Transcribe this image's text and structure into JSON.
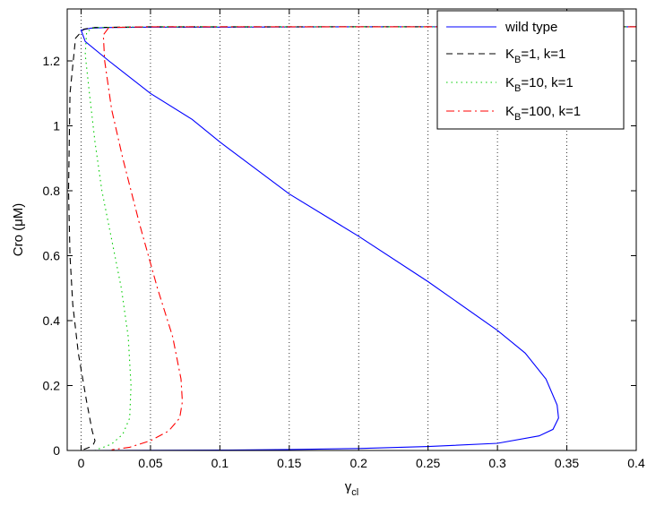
{
  "chart_data": {
    "type": "line",
    "xlabel_main": "γ",
    "xlabel_sub": "cl",
    "ylabel": "Cro (μM)",
    "xlim": [
      -0.01,
      0.4
    ],
    "ylim": [
      0,
      1.36
    ],
    "x_ticks": [
      0,
      0.05,
      0.1,
      0.15,
      0.2,
      0.25,
      0.3,
      0.35,
      0.4
    ],
    "x_tick_labels": [
      "0",
      "0.05",
      "0.1",
      "0.15",
      "0.2",
      "0.25",
      "0.3",
      "0.35",
      "0.4"
    ],
    "y_ticks": [
      0,
      0.2,
      0.4,
      0.6,
      0.8,
      1,
      1.2
    ],
    "y_tick_labels": [
      "0",
      "0.2",
      "0.4",
      "0.6",
      "0.8",
      "1",
      "1.2"
    ],
    "grid": "x-dotted",
    "legend_position": "top-right",
    "series": [
      {
        "name": "wild type",
        "legend_main": "wild type",
        "legend_sub": "",
        "legend_rest": "",
        "color": "#0000ff",
        "dash": "",
        "x": [
          0.4,
          0.3,
          0.2,
          0.1,
          0.05,
          0.02,
          0.007,
          0.0,
          0.003,
          0.02,
          0.05,
          0.08,
          0.1,
          0.15,
          0.2,
          0.25,
          0.3,
          0.32,
          0.335,
          0.343,
          0.344,
          0.34,
          0.33,
          0.3,
          0.25,
          0.2,
          0.15,
          0.1,
          0.05,
          0.0
        ],
        "y": [
          1.305,
          1.305,
          1.305,
          1.304,
          1.304,
          1.303,
          1.301,
          1.295,
          1.26,
          1.2,
          1.1,
          1.02,
          0.95,
          0.79,
          0.66,
          0.52,
          0.37,
          0.3,
          0.22,
          0.14,
          0.1,
          0.065,
          0.045,
          0.022,
          0.012,
          0.006,
          0.003,
          0.001,
          0.0005,
          0.0
        ]
      },
      {
        "name": "K_B=1, k=1",
        "legend_main": "K",
        "legend_sub": "B",
        "legend_rest": "=1, k=1",
        "color": "#000000",
        "dash": "7,5",
        "x": [
          0.4,
          0.2,
          0.05,
          0.01,
          0.002,
          -0.004,
          -0.008,
          -0.009,
          -0.008,
          -0.006,
          -0.002,
          0.004,
          0.008,
          0.01,
          0.009,
          0.006,
          0.0
        ],
        "y": [
          1.305,
          1.305,
          1.305,
          1.303,
          1.298,
          1.27,
          1.1,
          0.8,
          0.6,
          0.45,
          0.3,
          0.15,
          0.06,
          0.03,
          0.02,
          0.01,
          0.0
        ]
      },
      {
        "name": "K_B=10, k=1",
        "legend_main": "K",
        "legend_sub": "B",
        "legend_rest": "=10, k=1",
        "color": "#00cc00",
        "dash": "1.5,4",
        "x": [
          0.4,
          0.2,
          0.05,
          0.01,
          0.004,
          0.003,
          0.006,
          0.01,
          0.015,
          0.022,
          0.029,
          0.034,
          0.036,
          0.035,
          0.03,
          0.022,
          0.015,
          0.01
        ],
        "y": [
          1.305,
          1.305,
          1.305,
          1.303,
          1.29,
          1.22,
          1.1,
          0.95,
          0.8,
          0.65,
          0.5,
          0.35,
          0.2,
          0.1,
          0.05,
          0.02,
          0.008,
          0.002
        ]
      },
      {
        "name": "K_B=100, k=1",
        "legend_main": "K",
        "legend_sub": "B",
        "legend_rest": "=100, k=1",
        "color": "#ff0000",
        "dash": "9,4,2,4",
        "x": [
          0.4,
          0.2,
          0.05,
          0.02,
          0.016,
          0.017,
          0.022,
          0.03,
          0.042,
          0.055,
          0.066,
          0.072,
          0.073,
          0.071,
          0.063,
          0.05,
          0.035,
          0.022
        ],
        "y": [
          1.305,
          1.305,
          1.305,
          1.303,
          1.28,
          1.2,
          1.05,
          0.9,
          0.7,
          0.5,
          0.35,
          0.22,
          0.15,
          0.1,
          0.06,
          0.03,
          0.01,
          0.002
        ]
      }
    ]
  }
}
